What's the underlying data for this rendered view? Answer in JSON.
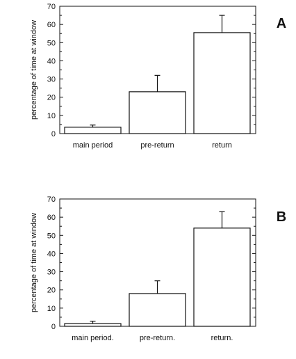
{
  "chart_data": [
    {
      "type": "bar",
      "panel_label": "A",
      "categories": [
        "main period",
        "pre-return",
        "return"
      ],
      "values": [
        3.5,
        23,
        55.5
      ],
      "errors": [
        1.2,
        9,
        9.5
      ],
      "title": "",
      "xlabel": "",
      "ylabel": "percentage of time at window",
      "ylim": [
        0,
        70
      ],
      "yticks": [
        0,
        10,
        20,
        30,
        40,
        50,
        60,
        70
      ],
      "grid": false,
      "bar_color": "#ffffff",
      "edge_color": "#111111"
    },
    {
      "type": "bar",
      "panel_label": "B",
      "categories": [
        "main period.",
        "pre-return.",
        "return."
      ],
      "values": [
        1.5,
        18,
        54
      ],
      "errors": [
        1.3,
        7,
        9
      ],
      "title": "",
      "xlabel": "",
      "ylabel": "percentage of time at window",
      "ylim": [
        0,
        70
      ],
      "yticks": [
        0,
        10,
        20,
        30,
        40,
        50,
        60,
        70
      ],
      "grid": false,
      "bar_color": "#ffffff",
      "edge_color": "#111111"
    }
  ]
}
